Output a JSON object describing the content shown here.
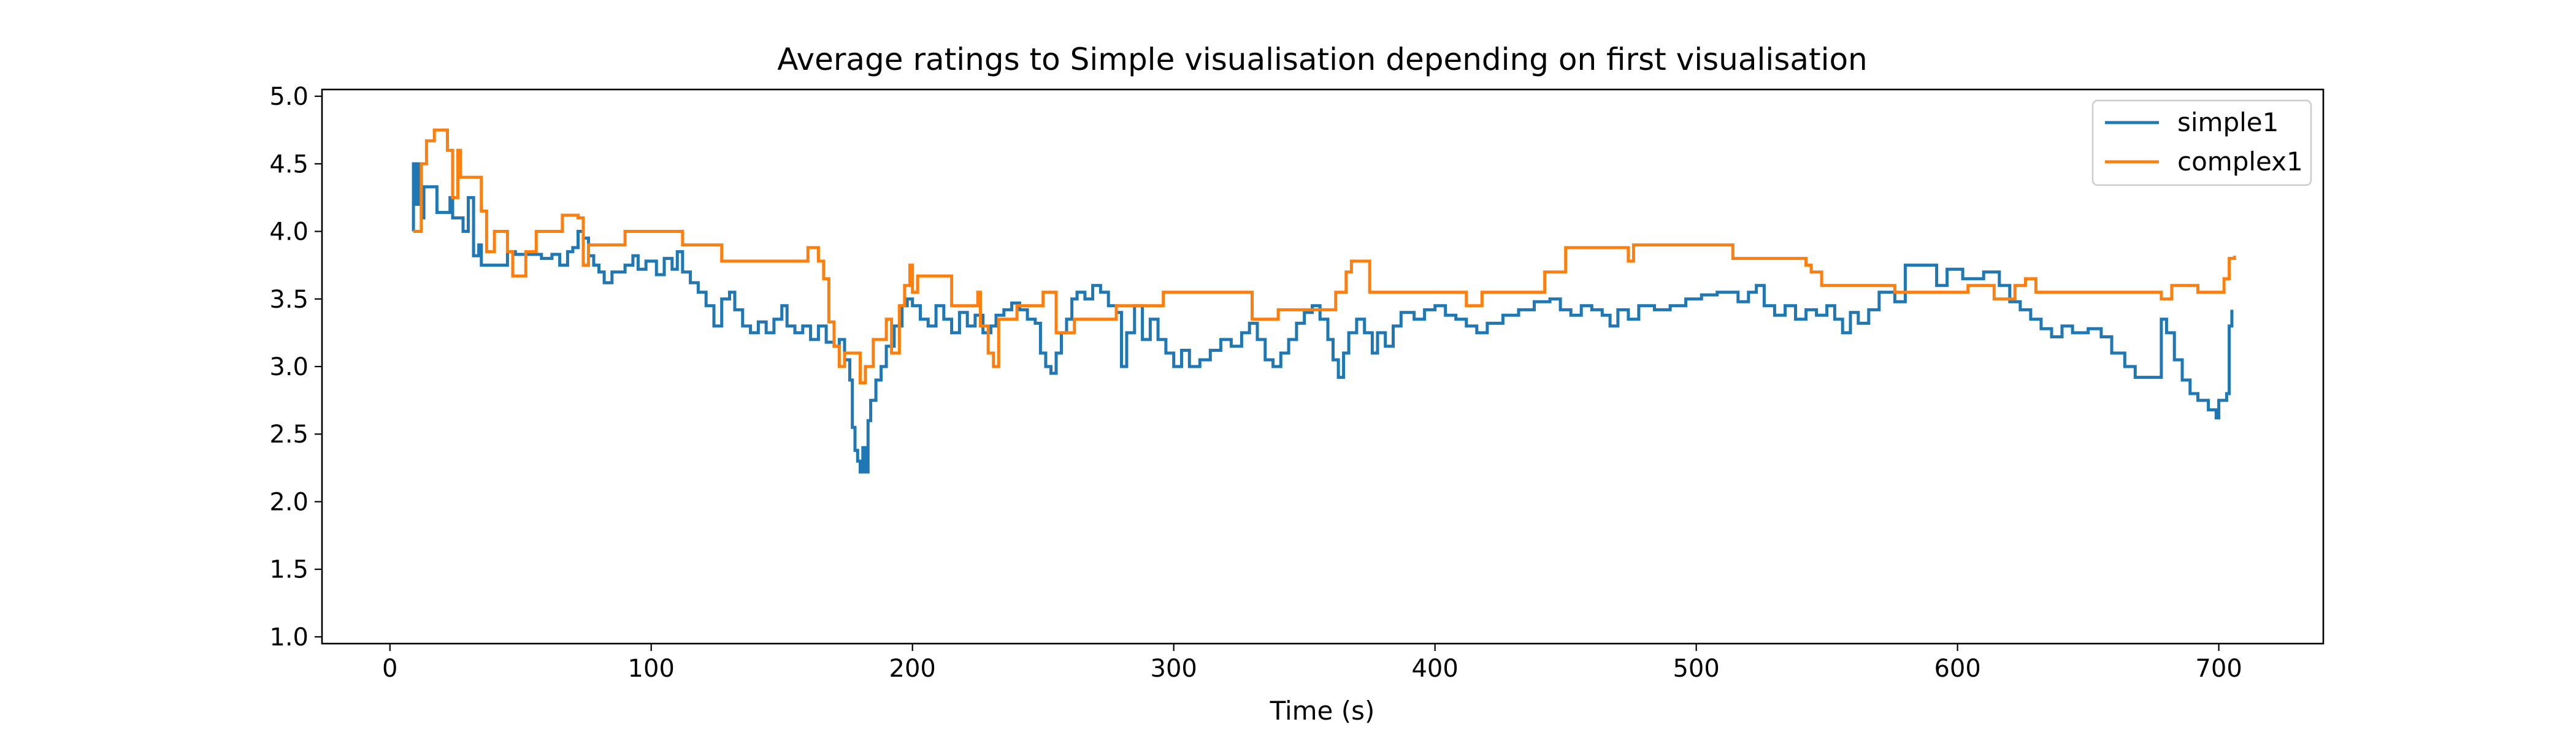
{
  "chart_data": {
    "type": "line",
    "title": "Average ratings to Simple visualisation depending on first visualisation",
    "xlabel": "Time (s)",
    "ylabel": "",
    "xlim": [
      -26,
      740
    ],
    "ylim": [
      0.95,
      5.05
    ],
    "xticks": [
      0,
      100,
      200,
      300,
      400,
      500,
      600,
      700
    ],
    "xtick_labels": [
      "0",
      "100",
      "200",
      "300",
      "400",
      "500",
      "600",
      "700"
    ],
    "yticks": [
      1.0,
      1.5,
      2.0,
      2.5,
      3.0,
      3.5,
      4.0,
      4.5,
      5.0
    ],
    "ytick_labels": [
      "1.0",
      "1.5",
      "2.0",
      "2.5",
      "3.0",
      "3.5",
      "4.0",
      "4.5",
      "5.0"
    ],
    "grid": false,
    "legend_position": "top-right",
    "step": true,
    "series": [
      {
        "name": "simple1",
        "color": "#1f77b4",
        "points": [
          [
            9,
            4.0
          ],
          [
            9,
            4.5
          ],
          [
            10,
            4.2
          ],
          [
            11,
            4.5
          ],
          [
            12,
            4.1
          ],
          [
            13,
            4.33
          ],
          [
            16,
            4.33
          ],
          [
            18,
            4.14
          ],
          [
            22,
            4.14
          ],
          [
            23,
            4.25
          ],
          [
            24,
            4.1
          ],
          [
            27,
            4.1
          ],
          [
            28,
            4.0
          ],
          [
            30,
            4.25
          ],
          [
            32,
            3.82
          ],
          [
            34,
            3.9
          ],
          [
            35,
            3.75
          ],
          [
            43,
            3.75
          ],
          [
            45,
            3.85
          ],
          [
            48,
            3.83
          ],
          [
            55,
            3.83
          ],
          [
            58,
            3.8
          ],
          [
            62,
            3.83
          ],
          [
            65,
            3.75
          ],
          [
            68,
            3.85
          ],
          [
            70,
            3.88
          ],
          [
            72,
            4.0
          ],
          [
            74,
            3.95
          ],
          [
            76,
            3.82
          ],
          [
            78,
            3.75
          ],
          [
            80,
            3.7
          ],
          [
            82,
            3.62
          ],
          [
            85,
            3.7
          ],
          [
            90,
            3.75
          ],
          [
            93,
            3.82
          ],
          [
            95,
            3.72
          ],
          [
            98,
            3.78
          ],
          [
            102,
            3.68
          ],
          [
            105,
            3.8
          ],
          [
            108,
            3.72
          ],
          [
            110,
            3.85
          ],
          [
            112,
            3.7
          ],
          [
            115,
            3.62
          ],
          [
            118,
            3.55
          ],
          [
            121,
            3.45
          ],
          [
            124,
            3.3
          ],
          [
            127,
            3.5
          ],
          [
            130,
            3.55
          ],
          [
            132,
            3.42
          ],
          [
            135,
            3.3
          ],
          [
            138,
            3.25
          ],
          [
            141,
            3.33
          ],
          [
            144,
            3.25
          ],
          [
            147,
            3.35
          ],
          [
            150,
            3.45
          ],
          [
            152,
            3.3
          ],
          [
            155,
            3.25
          ],
          [
            158,
            3.3
          ],
          [
            161,
            3.2
          ],
          [
            164,
            3.3
          ],
          [
            167,
            3.18
          ],
          [
            170,
            3.15
          ],
          [
            172,
            3.2
          ],
          [
            174,
            3.05
          ],
          [
            176,
            2.9
          ],
          [
            177,
            2.55
          ],
          [
            178,
            2.38
          ],
          [
            179,
            2.3
          ],
          [
            180,
            2.22
          ],
          [
            181,
            2.4
          ],
          [
            182,
            2.22
          ],
          [
            183,
            2.6
          ],
          [
            184,
            2.75
          ],
          [
            186,
            2.9
          ],
          [
            188,
            3.0
          ],
          [
            190,
            3.15
          ],
          [
            193,
            3.3
          ],
          [
            196,
            3.45
          ],
          [
            198,
            3.5
          ],
          [
            200,
            3.45
          ],
          [
            203,
            3.35
          ],
          [
            206,
            3.3
          ],
          [
            209,
            3.45
          ],
          [
            212,
            3.35
          ],
          [
            215,
            3.25
          ],
          [
            218,
            3.4
          ],
          [
            221,
            3.3
          ],
          [
            224,
            3.38
          ],
          [
            227,
            3.25
          ],
          [
            230,
            3.3
          ],
          [
            232,
            3.38
          ],
          [
            235,
            3.42
          ],
          [
            238,
            3.47
          ],
          [
            241,
            3.42
          ],
          [
            244,
            3.35
          ],
          [
            247,
            3.32
          ],
          [
            249,
            3.1
          ],
          [
            251,
            3.0
          ],
          [
            253,
            2.95
          ],
          [
            255,
            3.1
          ],
          [
            257,
            3.25
          ],
          [
            259,
            3.35
          ],
          [
            261,
            3.5
          ],
          [
            263,
            3.55
          ],
          [
            266,
            3.5
          ],
          [
            269,
            3.6
          ],
          [
            272,
            3.55
          ],
          [
            275,
            3.45
          ],
          [
            278,
            3.4
          ],
          [
            280,
            3.0
          ],
          [
            282,
            3.25
          ],
          [
            285,
            3.45
          ],
          [
            288,
            3.2
          ],
          [
            291,
            3.35
          ],
          [
            294,
            3.2
          ],
          [
            297,
            3.1
          ],
          [
            300,
            3.0
          ],
          [
            303,
            3.12
          ],
          [
            306,
            3.0
          ],
          [
            310,
            3.05
          ],
          [
            314,
            3.12
          ],
          [
            318,
            3.2
          ],
          [
            322,
            3.15
          ],
          [
            326,
            3.25
          ],
          [
            329,
            3.32
          ],
          [
            332,
            3.2
          ],
          [
            335,
            3.05
          ],
          [
            338,
            3.0
          ],
          [
            341,
            3.1
          ],
          [
            344,
            3.2
          ],
          [
            347,
            3.32
          ],
          [
            350,
            3.4
          ],
          [
            353,
            3.45
          ],
          [
            356,
            3.35
          ],
          [
            359,
            3.2
          ],
          [
            361,
            3.05
          ],
          [
            363,
            2.92
          ],
          [
            365,
            3.1
          ],
          [
            367,
            3.25
          ],
          [
            370,
            3.35
          ],
          [
            373,
            3.25
          ],
          [
            376,
            3.1
          ],
          [
            378,
            3.25
          ],
          [
            381,
            3.15
          ],
          [
            384,
            3.3
          ],
          [
            387,
            3.4
          ],
          [
            392,
            3.35
          ],
          [
            396,
            3.42
          ],
          [
            400,
            3.45
          ],
          [
            404,
            3.38
          ],
          [
            408,
            3.35
          ],
          [
            412,
            3.3
          ],
          [
            416,
            3.25
          ],
          [
            420,
            3.32
          ],
          [
            426,
            3.38
          ],
          [
            432,
            3.42
          ],
          [
            438,
            3.48
          ],
          [
            444,
            3.5
          ],
          [
            448,
            3.42
          ],
          [
            452,
            3.38
          ],
          [
            456,
            3.45
          ],
          [
            460,
            3.42
          ],
          [
            464,
            3.38
          ],
          [
            467,
            3.3
          ],
          [
            470,
            3.42
          ],
          [
            474,
            3.35
          ],
          [
            478,
            3.45
          ],
          [
            484,
            3.42
          ],
          [
            490,
            3.45
          ],
          [
            496,
            3.5
          ],
          [
            502,
            3.53
          ],
          [
            508,
            3.55
          ],
          [
            516,
            3.48
          ],
          [
            520,
            3.55
          ],
          [
            523,
            3.6
          ],
          [
            526,
            3.45
          ],
          [
            530,
            3.38
          ],
          [
            534,
            3.45
          ],
          [
            538,
            3.35
          ],
          [
            542,
            3.42
          ],
          [
            546,
            3.38
          ],
          [
            550,
            3.45
          ],
          [
            553,
            3.35
          ],
          [
            556,
            3.25
          ],
          [
            559,
            3.4
          ],
          [
            562,
            3.32
          ],
          [
            566,
            3.42
          ],
          [
            570,
            3.55
          ],
          [
            576,
            3.48
          ],
          [
            580,
            3.75
          ],
          [
            592,
            3.6
          ],
          [
            596,
            3.72
          ],
          [
            602,
            3.65
          ],
          [
            610,
            3.7
          ],
          [
            616,
            3.6
          ],
          [
            620,
            3.48
          ],
          [
            624,
            3.42
          ],
          [
            628,
            3.35
          ],
          [
            632,
            3.28
          ],
          [
            636,
            3.22
          ],
          [
            640,
            3.3
          ],
          [
            644,
            3.25
          ],
          [
            650,
            3.28
          ],
          [
            655,
            3.22
          ],
          [
            659,
            3.1
          ],
          [
            664,
            3.0
          ],
          [
            668,
            2.92
          ],
          [
            674,
            2.92
          ],
          [
            678,
            3.35
          ],
          [
            680,
            3.25
          ],
          [
            683,
            3.05
          ],
          [
            686,
            2.9
          ],
          [
            689,
            2.8
          ],
          [
            692,
            2.75
          ],
          [
            696,
            2.68
          ],
          [
            699,
            2.62
          ],
          [
            700,
            2.75
          ],
          [
            703,
            2.8
          ],
          [
            704,
            3.3
          ],
          [
            705,
            3.42
          ]
        ]
      },
      {
        "name": "complex1",
        "color": "#ff7f0e",
        "points": [
          [
            9,
            4.0
          ],
          [
            12,
            4.5
          ],
          [
            14,
            4.67
          ],
          [
            17,
            4.75
          ],
          [
            22,
            4.6
          ],
          [
            24,
            4.25
          ],
          [
            26,
            4.6
          ],
          [
            27,
            4.4
          ],
          [
            35,
            4.15
          ],
          [
            37,
            3.85
          ],
          [
            40,
            4.0
          ],
          [
            45,
            3.85
          ],
          [
            47,
            3.67
          ],
          [
            52,
            3.85
          ],
          [
            56,
            4.0
          ],
          [
            66,
            4.12
          ],
          [
            72,
            4.1
          ],
          [
            74,
            3.75
          ],
          [
            76,
            3.9
          ],
          [
            90,
            4.0
          ],
          [
            112,
            3.9
          ],
          [
            127,
            3.78
          ],
          [
            160,
            3.88
          ],
          [
            164,
            3.78
          ],
          [
            166,
            3.65
          ],
          [
            168,
            3.33
          ],
          [
            170,
            3.15
          ],
          [
            172,
            3.0
          ],
          [
            174,
            3.1
          ],
          [
            180,
            2.88
          ],
          [
            182,
            3.0
          ],
          [
            185,
            3.2
          ],
          [
            190,
            3.35
          ],
          [
            192,
            3.1
          ],
          [
            195,
            3.45
          ],
          [
            197,
            3.6
          ],
          [
            199,
            3.75
          ],
          [
            200,
            3.55
          ],
          [
            202,
            3.67
          ],
          [
            215,
            3.45
          ],
          [
            225,
            3.55
          ],
          [
            226,
            3.3
          ],
          [
            229,
            3.1
          ],
          [
            231,
            3.0
          ],
          [
            233,
            3.35
          ],
          [
            240,
            3.45
          ],
          [
            250,
            3.55
          ],
          [
            255,
            3.25
          ],
          [
            262,
            3.35
          ],
          [
            278,
            3.45
          ],
          [
            296,
            3.55
          ],
          [
            330,
            3.35
          ],
          [
            340,
            3.42
          ],
          [
            362,
            3.55
          ],
          [
            366,
            3.7
          ],
          [
            368,
            3.78
          ],
          [
            375,
            3.55
          ],
          [
            412,
            3.45
          ],
          [
            418,
            3.55
          ],
          [
            442,
            3.7
          ],
          [
            450,
            3.88
          ],
          [
            474,
            3.78
          ],
          [
            476,
            3.9
          ],
          [
            514,
            3.8
          ],
          [
            542,
            3.75
          ],
          [
            544,
            3.7
          ],
          [
            548,
            3.6
          ],
          [
            576,
            3.55
          ],
          [
            604,
            3.6
          ],
          [
            614,
            3.5
          ],
          [
            622,
            3.6
          ],
          [
            626,
            3.65
          ],
          [
            630,
            3.55
          ],
          [
            678,
            3.5
          ],
          [
            682,
            3.6
          ],
          [
            692,
            3.55
          ],
          [
            702,
            3.65
          ],
          [
            704,
            3.8
          ],
          [
            706,
            3.82
          ]
        ]
      }
    ]
  }
}
